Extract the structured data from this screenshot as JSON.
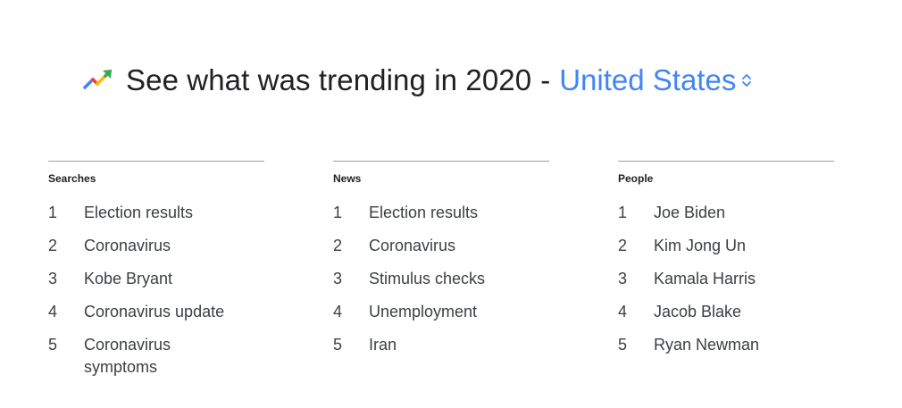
{
  "header": {
    "title": "See what was trending in 2020",
    "separator": "-",
    "region": "United States",
    "trend_icon": "trending-up-icon",
    "region_icon": "unfold-icon",
    "accent_color": "#4285f4"
  },
  "columns": [
    {
      "title": "Searches",
      "items": [
        {
          "rank": "1",
          "label": "Election results"
        },
        {
          "rank": "2",
          "label": "Coronavirus"
        },
        {
          "rank": "3",
          "label": "Kobe Bryant"
        },
        {
          "rank": "4",
          "label": "Coronavirus update"
        },
        {
          "rank": "5",
          "label": "Coronavirus symptoms"
        }
      ]
    },
    {
      "title": "News",
      "items": [
        {
          "rank": "1",
          "label": "Election results"
        },
        {
          "rank": "2",
          "label": "Coronavirus"
        },
        {
          "rank": "3",
          "label": "Stimulus checks"
        },
        {
          "rank": "4",
          "label": "Unemployment"
        },
        {
          "rank": "5",
          "label": "Iran"
        }
      ]
    },
    {
      "title": "People",
      "items": [
        {
          "rank": "1",
          "label": "Joe Biden"
        },
        {
          "rank": "2",
          "label": "Kim Jong Un"
        },
        {
          "rank": "3",
          "label": "Kamala Harris"
        },
        {
          "rank": "4",
          "label": "Jacob Blake"
        },
        {
          "rank": "5",
          "label": "Ryan Newman"
        }
      ]
    }
  ]
}
